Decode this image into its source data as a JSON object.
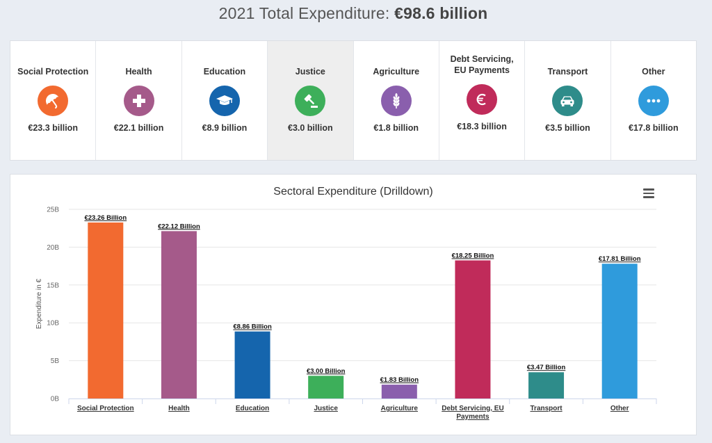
{
  "header": {
    "title_prefix": "2021 Total Expenditure: ",
    "title_value": "€98.6 billion"
  },
  "cards": [
    {
      "label": "Social Protection",
      "value": "€23.3 billion",
      "icon": "umbrella-icon",
      "color": "#f26a30"
    },
    {
      "label": "Health",
      "value": "€22.1 billion",
      "icon": "plus-icon",
      "color": "#a55a8a"
    },
    {
      "label": "Education",
      "value": "€8.9 billion",
      "icon": "graduation-cap-icon",
      "color": "#1565ad"
    },
    {
      "label": "Justice",
      "value": "€3.0 billion",
      "icon": "gavel-icon",
      "color": "#3daf5a"
    },
    {
      "label": "Agriculture",
      "value": "€1.8 billion",
      "icon": "wheat-icon",
      "color": "#8a5fad"
    },
    {
      "label": "Debt Servicing,\nEU Payments",
      "value": "€18.3 billion",
      "icon": "euro-icon",
      "color": "#c02b5a"
    },
    {
      "label": "Transport",
      "value": "€3.5 billion",
      "icon": "car-icon",
      "color": "#2e8c8a"
    },
    {
      "label": "Other",
      "value": "€17.8 billion",
      "icon": "ellipsis-icon",
      "color": "#2f9bdc"
    }
  ],
  "active_card": 3,
  "chart_data": {
    "type": "bar",
    "title": "Sectoral Expenditure (Drilldown)",
    "ylabel": "Expenditure in €",
    "xlabel": "",
    "ylim": [
      0,
      25
    ],
    "yticks": [
      0,
      5,
      10,
      15,
      20,
      25
    ],
    "ytick_labels": [
      "0B",
      "5B",
      "10B",
      "15B",
      "20B",
      "25B"
    ],
    "grid": true,
    "categories": [
      "Social Protection",
      "Health",
      "Education",
      "Justice",
      "Agriculture",
      "Debt Servicing, EU Payments",
      "Transport",
      "Other"
    ],
    "values": [
      23.26,
      22.12,
      8.86,
      3.0,
      1.83,
      18.25,
      3.47,
      17.81
    ],
    "data_labels": [
      "€23.26 Billion",
      "€22.12 Billion",
      "€8.86 Billion",
      "€3.00 Billion",
      "€1.83 Billion",
      "€18.25 Billion",
      "€3.47 Billion",
      "€17.81 Billion"
    ],
    "colors": [
      "#f26a30",
      "#a55a8a",
      "#1565ad",
      "#3daf5a",
      "#8a5fad",
      "#c02b5a",
      "#2e8c8a",
      "#2f9bdc"
    ]
  }
}
